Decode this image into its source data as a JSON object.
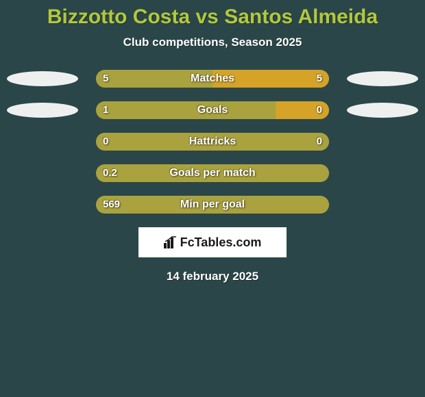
{
  "title": "Bizzotto Costa vs Santos Almeida",
  "title_color": "#b2c93b",
  "title_fontsize": 30,
  "subtitle": "Club competitions, Season 2025",
  "subtitle_fontsize": 17,
  "text_color": "#ffffff",
  "background_color": "#2b4648",
  "bar_colors": {
    "left_bg": "#a9a23e",
    "left_main": "#a9a23e",
    "right_main": "#d4a327",
    "neutral": "#a9a23e"
  },
  "value_fontsize": 15,
  "metric_fontsize": 16,
  "side_oval_color": "#eef0ef",
  "rows": [
    {
      "metric": "Matches",
      "left": "5",
      "right": "5",
      "left_pct": 50,
      "right_pct": 50,
      "show_ovals": true
    },
    {
      "metric": "Goals",
      "left": "1",
      "right": "0",
      "left_pct": 77,
      "right_pct": 23,
      "show_ovals": true
    },
    {
      "metric": "Hattricks",
      "left": "0",
      "right": "0",
      "left_pct": 100,
      "right_pct": 0,
      "show_ovals": false
    },
    {
      "metric": "Goals per match",
      "left": "0.2",
      "right": "",
      "left_pct": 100,
      "right_pct": 0,
      "show_ovals": false
    },
    {
      "metric": "Min per goal",
      "left": "569",
      "right": "",
      "left_pct": 100,
      "right_pct": 0,
      "show_ovals": false
    }
  ],
  "brand": "FcTables.com",
  "brand_box_bg": "#ffffff",
  "brand_text_color": "#1a1a1a",
  "date": "14 february 2025",
  "date_fontsize": 17
}
